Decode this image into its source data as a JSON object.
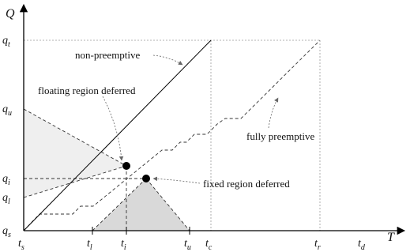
{
  "axes": {
    "y_label": "Q",
    "x_label": "T"
  },
  "y_ticks": [
    {
      "base": "q",
      "sub": "t"
    },
    {
      "base": "q",
      "sub": "u"
    },
    {
      "base": "q",
      "sub": "i"
    },
    {
      "base": "q",
      "sub": "l"
    },
    {
      "base": "q",
      "sub": "s"
    }
  ],
  "x_ticks": [
    {
      "base": "t",
      "sub": "s"
    },
    {
      "base": "t",
      "sub": "l"
    },
    {
      "base": "t",
      "sub": "i"
    },
    {
      "base": "t",
      "sub": "u"
    },
    {
      "base": "t",
      "sub": "c"
    },
    {
      "base": "t",
      "sub": "r"
    },
    {
      "base": "t",
      "sub": "d"
    }
  ],
  "annotations": {
    "non_preemptive": "non-preemptive",
    "floating": "floating region deferred",
    "fixed": "fixed region deferred",
    "fully_preemptive": "fully preemptive"
  }
}
